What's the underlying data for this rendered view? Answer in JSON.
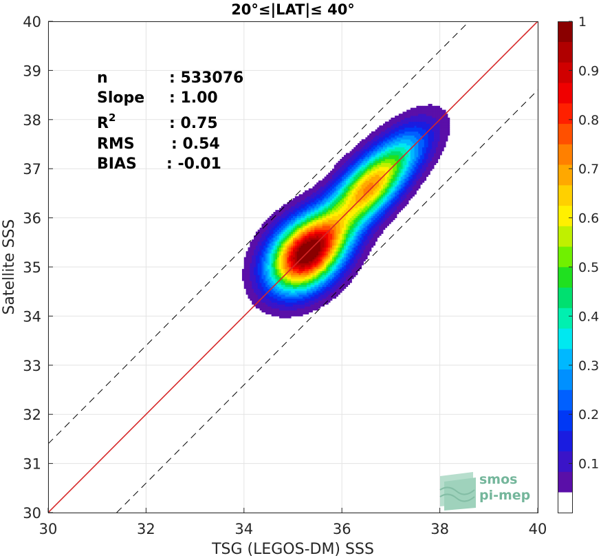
{
  "chart_data": {
    "type": "heatmap",
    "title": "20°≤|LAT|≤ 40°",
    "xlabel": "TSG (LEGOS-DM) SSS",
    "ylabel": "Satellite SSS",
    "xlim": [
      30,
      40
    ],
    "ylim": [
      30,
      40
    ],
    "xticks": [
      "30",
      "32",
      "34",
      "36",
      "38",
      "40"
    ],
    "yticks": [
      "30",
      "31",
      "32",
      "33",
      "34",
      "35",
      "36",
      "37",
      "38",
      "39",
      "40"
    ],
    "grid": true,
    "lines": [
      {
        "name": "1:1",
        "style": "solid",
        "color": "#d62728",
        "x": [
          30,
          40
        ],
        "y": [
          30,
          40
        ]
      },
      {
        "name": "+1.4",
        "style": "dashed",
        "color": "#000000",
        "x": [
          30,
          38.6
        ],
        "y": [
          31.4,
          40
        ]
      },
      {
        "name": "-1.4",
        "style": "dashed",
        "color": "#000000",
        "x": [
          31.4,
          40
        ],
        "y": [
          30,
          38.6
        ]
      }
    ],
    "density_peaks": [
      {
        "x": 35.25,
        "y": 35.25,
        "value": 1.0
      },
      {
        "x": 36.45,
        "y": 36.5,
        "value": 0.5
      },
      {
        "x": 37.0,
        "y": 37.15,
        "value": 0.38
      }
    ],
    "stats": [
      {
        "label": "n",
        "value": ": 533076"
      },
      {
        "label": "Slope",
        "value": ": 1.00"
      },
      {
        "label": "R",
        "sup": "2",
        "value": ": 0.75"
      },
      {
        "label": "RMS",
        "value": ": 0.54"
      },
      {
        "label": "BIAS",
        "value": ": -0.01"
      }
    ],
    "colorbar": {
      "range": [
        0,
        1
      ],
      "ticks": [
        "0.1",
        "0.2",
        "0.3",
        "0.4",
        "0.5",
        "0.6",
        "0.7",
        "0.8",
        "0.9",
        "1"
      ],
      "colors": [
        "#ffffff",
        "#5a0fa8",
        "#3a14c8",
        "#1a1ce0",
        "#0038f5",
        "#0060ff",
        "#0090ff",
        "#00b8ff",
        "#00e8f0",
        "#00f0b0",
        "#00e070",
        "#20e020",
        "#70f000",
        "#c0f000",
        "#fff000",
        "#ffd000",
        "#ffa800",
        "#ff8000",
        "#ff5000",
        "#ff2000",
        "#f00000",
        "#d00000",
        "#b00000",
        "#8a0000"
      ]
    },
    "logo": {
      "line1": "smos",
      "line2": "pi-mep"
    }
  }
}
